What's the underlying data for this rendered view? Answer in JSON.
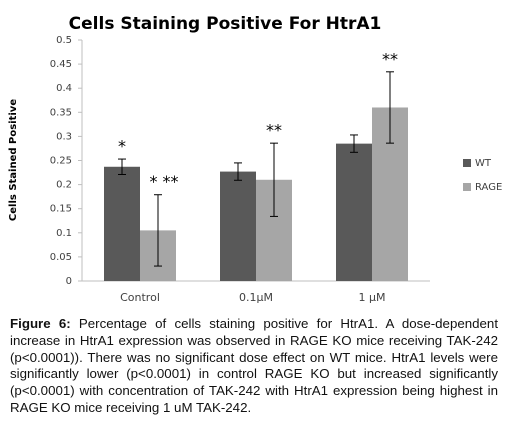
{
  "chart_data": {
    "type": "bar",
    "title": "Cells Staining Positive For HtrA1",
    "y_label": "Cells Stained Positive",
    "categories": [
      "Control",
      "0.1μM",
      "1 μM"
    ],
    "series": [
      {
        "name": "WT",
        "color": "#595959",
        "values": [
          0.237,
          0.227,
          0.285
        ],
        "errors": [
          0.016,
          0.018,
          0.018
        ],
        "annotations": [
          "*",
          null,
          null
        ]
      },
      {
        "name": "RAGE",
        "color": "#a6a6a6",
        "values": [
          0.105,
          0.21,
          0.36
        ],
        "errors": [
          0.074,
          0.076,
          0.074
        ],
        "annotations": [
          "* **",
          "**",
          "**"
        ]
      }
    ],
    "ylim": [
      0,
      0.5
    ],
    "yticks": [
      0,
      0.05,
      0.1,
      0.15,
      0.2,
      0.25,
      0.3,
      0.35,
      0.4,
      0.45,
      0.5
    ],
    "grid": false,
    "legend": "right"
  },
  "caption": {
    "label": "Figure 6:",
    "text": "Percentage of cells staining positive for HtrA1. A dose-dependent increase in HtrA1 expression was observed in RAGE KO mice receiving TAK-242 (p<0.0001)). There was no significant dose effect on WT mice. HtrA1 levels were significantly lower (p<0.0001) in control RAGE KO but increased significantly (p<0.0001) with concentration of TAK-242 with HtrA1 expression being highest in RAGE KO mice receiving 1 uM TAK-242."
  }
}
